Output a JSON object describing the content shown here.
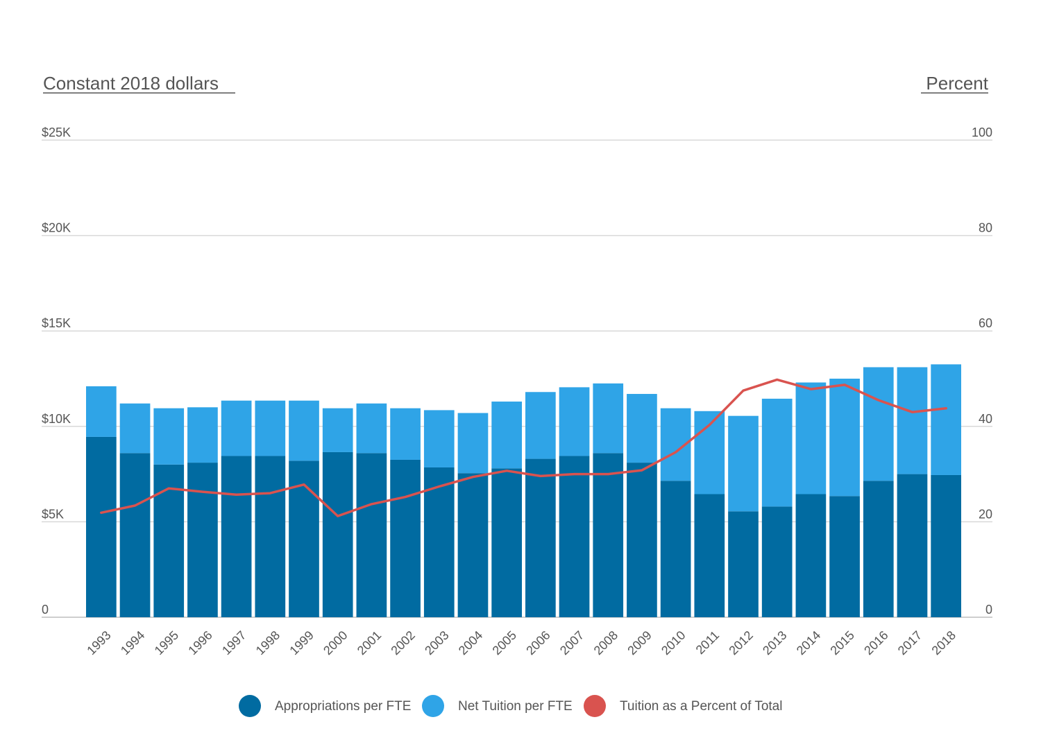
{
  "chart_data": {
    "type": "bar",
    "stacked": true,
    "title": "",
    "xlabel": "",
    "y_left_label": "Constant 2018 dollars",
    "y_right_label": "Percent",
    "ylim_left": [
      0,
      25000
    ],
    "ylim_right": [
      0,
      100
    ],
    "y_left_ticks": [
      {
        "value": 0,
        "label": "0"
      },
      {
        "value": 5000,
        "label": "$5K"
      },
      {
        "value": 10000,
        "label": "$10K"
      },
      {
        "value": 15000,
        "label": "$15K"
      },
      {
        "value": 20000,
        "label": "$20K"
      },
      {
        "value": 25000,
        "label": "$25K"
      }
    ],
    "y_right_ticks": [
      {
        "value": 0,
        "label": "0"
      },
      {
        "value": 20,
        "label": "20"
      },
      {
        "value": 40,
        "label": "40"
      },
      {
        "value": 60,
        "label": "60"
      },
      {
        "value": 80,
        "label": "80"
      },
      {
        "value": 100,
        "label": "100"
      }
    ],
    "grid": true,
    "legend_position": "bottom",
    "categories": [
      "1993",
      "1994",
      "1995",
      "1996",
      "1997",
      "1998",
      "1999",
      "2000",
      "2001",
      "2002",
      "2003",
      "2004",
      "2005",
      "2006",
      "2007",
      "2008",
      "2009",
      "2010",
      "2011",
      "2012",
      "2013",
      "2014",
      "2015",
      "2016",
      "2017",
      "2018"
    ],
    "series": [
      {
        "name": "Appropriations per FTE",
        "type": "bar",
        "axis": "left",
        "color": "#016ba1",
        "values": [
          9450,
          8600,
          8000,
          8100,
          8450,
          8450,
          8200,
          8650,
          8600,
          8250,
          7850,
          7550,
          7800,
          8300,
          8450,
          8600,
          8100,
          7150,
          6450,
          5550,
          5800,
          6450,
          6350,
          7150,
          7500,
          7450
        ]
      },
      {
        "name": "Net Tuition per FTE",
        "type": "bar",
        "axis": "left",
        "color": "#2fa4e7",
        "values": [
          2650,
          2600,
          2950,
          2900,
          2900,
          2900,
          3150,
          2300,
          2600,
          2700,
          3000,
          3150,
          3500,
          3500,
          3600,
          3650,
          3600,
          3800,
          4350,
          5000,
          5650,
          5850,
          6150,
          5950,
          5600,
          5800
        ]
      },
      {
        "name": "Tuition as a Percent of Total",
        "type": "line",
        "axis": "right",
        "color": "#d9534f",
        "values": [
          21.9,
          23.4,
          27.0,
          26.3,
          25.7,
          26.0,
          27.8,
          21.2,
          23.7,
          25.2,
          27.4,
          29.4,
          30.7,
          29.6,
          30.0,
          30.0,
          30.8,
          34.6,
          40.3,
          47.5,
          49.8,
          47.8,
          48.7,
          45.5,
          43.0,
          43.8
        ]
      }
    ]
  }
}
